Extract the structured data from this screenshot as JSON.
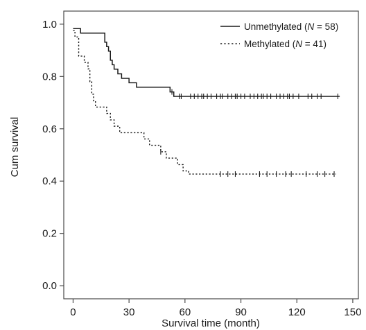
{
  "chart_data": {
    "type": "line",
    "title": "",
    "xlabel": "Survival time (month)",
    "ylabel": "Cum survival",
    "xlim": [
      -5,
      153
    ],
    "ylim": [
      -0.05,
      1.05
    ],
    "x_ticks": [
      0,
      30,
      60,
      90,
      120,
      150
    ],
    "y_ticks": [
      0.0,
      0.2,
      0.4,
      0.6,
      0.8,
      1.0
    ],
    "x_tick_labels": [
      "0",
      "30",
      "60",
      "90",
      "120",
      "150"
    ],
    "y_tick_labels": [
      "0.0",
      "0.2",
      "0.4",
      "0.6",
      "0.8",
      "1.0"
    ],
    "grid": false,
    "legend_position": "top-right",
    "series": [
      {
        "name": "Unmethylated (N = 58)",
        "legend_prefix": "Unmethylated (",
        "legend_n": "N",
        "legend_suffix": " = 58)",
        "line_style": "solid",
        "color": "#1a1a1a",
        "steps": [
          [
            0,
            0.983
          ],
          [
            2,
            0.983
          ],
          [
            4,
            0.966
          ],
          [
            17,
            0.931
          ],
          [
            18,
            0.914
          ],
          [
            19,
            0.897
          ],
          [
            20,
            0.862
          ],
          [
            21,
            0.845
          ],
          [
            22,
            0.828
          ],
          [
            24,
            0.81
          ],
          [
            26,
            0.793
          ],
          [
            30,
            0.776
          ],
          [
            34,
            0.759
          ],
          [
            52,
            0.741
          ],
          [
            54,
            0.724
          ],
          [
            143,
            0.724
          ]
        ],
        "censored": [
          53,
          57,
          58,
          63,
          65,
          67,
          69,
          70,
          72,
          74,
          77,
          79,
          80,
          83,
          85,
          87,
          88,
          90,
          92,
          95,
          97,
          99,
          101,
          102,
          104,
          106,
          109,
          111,
          113,
          115,
          116,
          118,
          121,
          126,
          128,
          131,
          133,
          142
        ]
      },
      {
        "name": "Methylated (N = 41)",
        "legend_prefix": "Methylated (",
        "legend_n": "N",
        "legend_suffix": " = 41)",
        "line_style": "dotted",
        "color": "#1a1a1a",
        "steps": [
          [
            0,
            0.976
          ],
          [
            1,
            0.951
          ],
          [
            3,
            0.878
          ],
          [
            6,
            0.854
          ],
          [
            8,
            0.829
          ],
          [
            9,
            0.78
          ],
          [
            10,
            0.732
          ],
          [
            11,
            0.707
          ],
          [
            12,
            0.683
          ],
          [
            18,
            0.659
          ],
          [
            20,
            0.634
          ],
          [
            22,
            0.61
          ],
          [
            25,
            0.585
          ],
          [
            38,
            0.561
          ],
          [
            41,
            0.537
          ],
          [
            47,
            0.512
          ],
          [
            50,
            0.488
          ],
          [
            56,
            0.463
          ],
          [
            59,
            0.439
          ],
          [
            62,
            0.427
          ],
          [
            141,
            0.427
          ]
        ],
        "censored": [
          47,
          79,
          83,
          87,
          100,
          104,
          109,
          114,
          117,
          125,
          131,
          135,
          140
        ]
      }
    ]
  }
}
